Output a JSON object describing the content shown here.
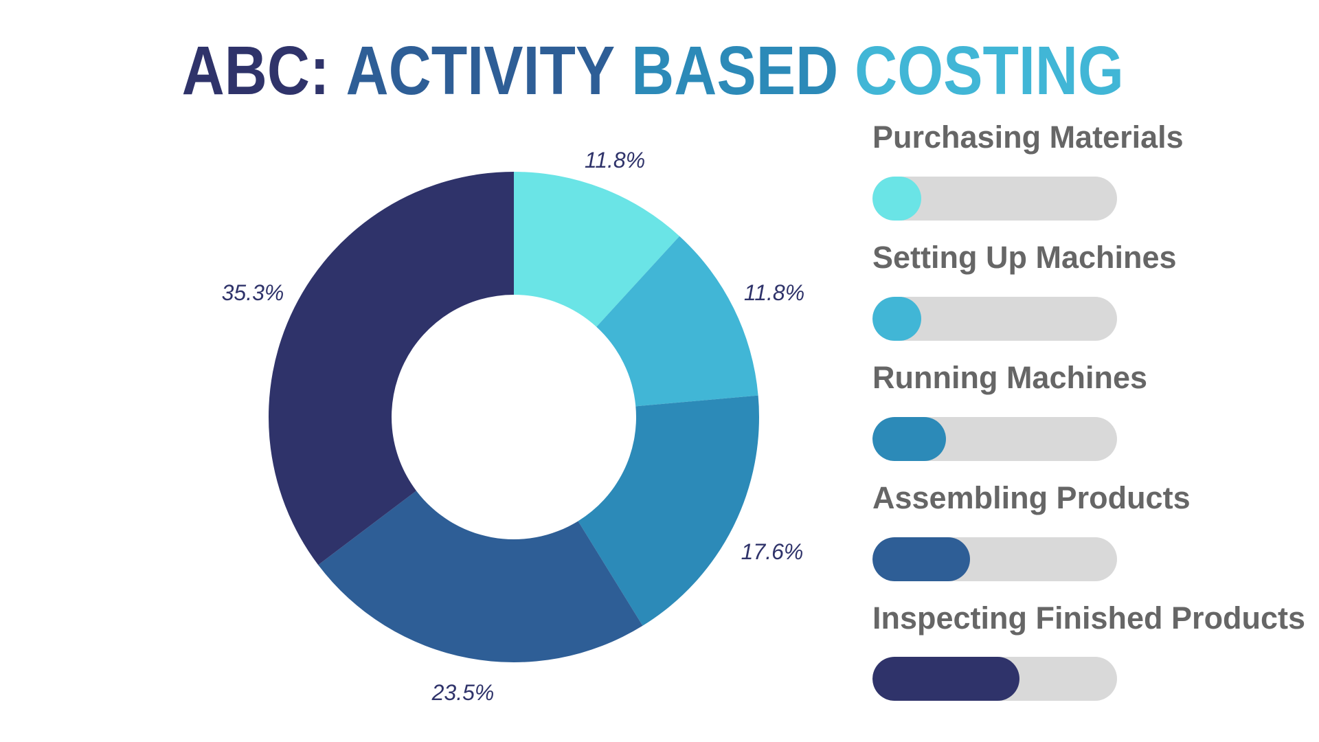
{
  "title": {
    "parts": [
      {
        "text": "ABC:",
        "color": "#2f336a"
      },
      {
        "text": "ACTIVITY",
        "color": "#2e5e96"
      },
      {
        "text": "BASED",
        "color": "#2c8ab8"
      },
      {
        "text": "COSTING",
        "color": "#41b6d6"
      }
    ]
  },
  "chart_data": [
    {
      "type": "pie",
      "variant": "donut",
      "categories": [
        "Purchasing Materials",
        "Setting Up Machines",
        "Running Machines",
        "Assembling Products",
        "Inspecting Finished Products"
      ],
      "values": [
        11.8,
        11.8,
        17.6,
        23.5,
        35.3
      ],
      "data_labels": [
        "11.8%",
        "11.8%",
        "17.6%",
        "23.5%",
        "35.3%"
      ],
      "colors": [
        "#6ae4e6",
        "#41b6d6",
        "#2c8ab8",
        "#2e5e96",
        "#2f336a"
      ],
      "start": "top",
      "direction": "clockwise"
    },
    {
      "type": "bar",
      "orientation": "horizontal",
      "categories": [
        "Purchasing Materials",
        "Setting Up Machines",
        "Running Machines",
        "Assembling Products",
        "Inspecting Finished Products"
      ],
      "fill_fraction": [
        0.2,
        0.2,
        0.3,
        0.4,
        0.6
      ],
      "colors": [
        "#6ae4e6",
        "#41b6d6",
        "#2c8ab8",
        "#2e5e96",
        "#2f336a"
      ],
      "track_color": "#d9d9d9"
    }
  ]
}
